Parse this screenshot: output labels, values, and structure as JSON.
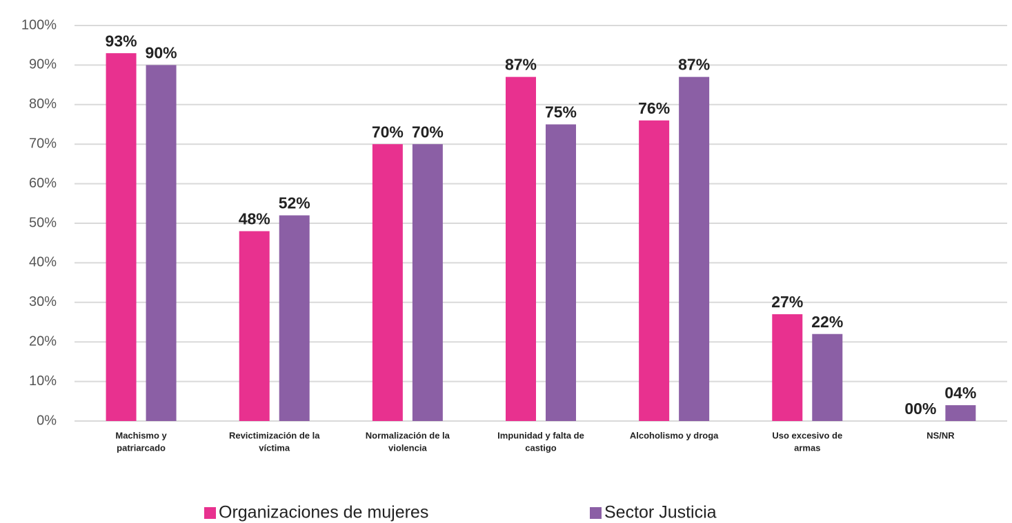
{
  "chart_data": {
    "type": "bar",
    "categories": [
      [
        "Machismo y",
        "patriarcado"
      ],
      [
        "Revictimización de la",
        "víctima"
      ],
      [
        "Normalización de la",
        "violencia"
      ],
      [
        "Impunidad y falta de",
        "castigo"
      ],
      [
        "Alcoholismo y droga"
      ],
      [
        "Uso excesivo de",
        "armas"
      ],
      [
        "NS/NR"
      ]
    ],
    "series": [
      {
        "name": "Organizaciones de mujeres",
        "color": "#e8318f",
        "values": [
          93,
          48,
          70,
          87,
          76,
          27,
          0
        ],
        "value_labels": [
          "93%",
          "48%",
          "70%",
          "87%",
          "76%",
          "27%",
          "00%"
        ]
      },
      {
        "name": "Sector Justicia",
        "color": "#8b5fa5",
        "values": [
          90,
          52,
          70,
          75,
          87,
          22,
          4
        ],
        "value_labels": [
          "90%",
          "52%",
          "70%",
          "75%",
          "87%",
          "22%",
          "04%"
        ]
      }
    ],
    "ylim": [
      0,
      100
    ],
    "yticks": [
      {
        "value": 0,
        "label": "0%"
      },
      {
        "value": 10,
        "label": "10%"
      },
      {
        "value": 20,
        "label": "20%"
      },
      {
        "value": 30,
        "label": "30%"
      },
      {
        "value": 40,
        "label": "40%"
      },
      {
        "value": 50,
        "label": "50%"
      },
      {
        "value": 60,
        "label": "60%"
      },
      {
        "value": 70,
        "label": "70%"
      },
      {
        "value": 80,
        "label": "80%"
      },
      {
        "value": 90,
        "label": "90%"
      },
      {
        "value": 100,
        "label": "100%"
      }
    ],
    "grid": true,
    "legend": "bottom"
  }
}
